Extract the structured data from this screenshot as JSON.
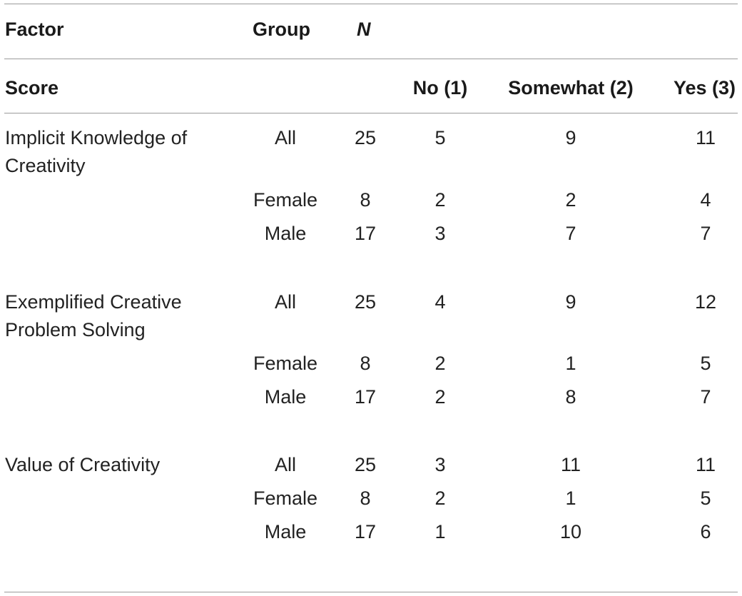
{
  "headers": {
    "factor": "Factor",
    "group": "Group",
    "n": "N",
    "score": "Score",
    "no": "No (1)",
    "somewhat": "Somewhat (2)",
    "yes": "Yes (3)"
  },
  "rows": [
    {
      "factor": "Implicit Knowledge of Creativity",
      "group": "All",
      "n": "25",
      "no": "5",
      "somewhat": "9",
      "yes": "11"
    },
    {
      "factor": "",
      "group": "Female",
      "n": "8",
      "no": "2",
      "somewhat": "2",
      "yes": "4"
    },
    {
      "factor": "",
      "group": "Male",
      "n": "17",
      "no": "3",
      "somewhat": "7",
      "yes": "7"
    },
    {
      "factor": "Exemplified Creative Problem Solving",
      "group": "All",
      "n": "25",
      "no": "4",
      "somewhat": "9",
      "yes": "12"
    },
    {
      "factor": "",
      "group": "Female",
      "n": "8",
      "no": "2",
      "somewhat": "1",
      "yes": "5"
    },
    {
      "factor": "",
      "group": "Male",
      "n": "17",
      "no": "2",
      "somewhat": "8",
      "yes": "7"
    },
    {
      "factor": "Value of Creativity",
      "group": "All",
      "n": "25",
      "no": "3",
      "somewhat": "11",
      "yes": "11"
    },
    {
      "factor": "",
      "group": "Female",
      "n": "8",
      "no": "2",
      "somewhat": "1",
      "yes": "5"
    },
    {
      "factor": "",
      "group": "Male",
      "n": "17",
      "no": "1",
      "somewhat": "10",
      "yes": "6"
    }
  ]
}
